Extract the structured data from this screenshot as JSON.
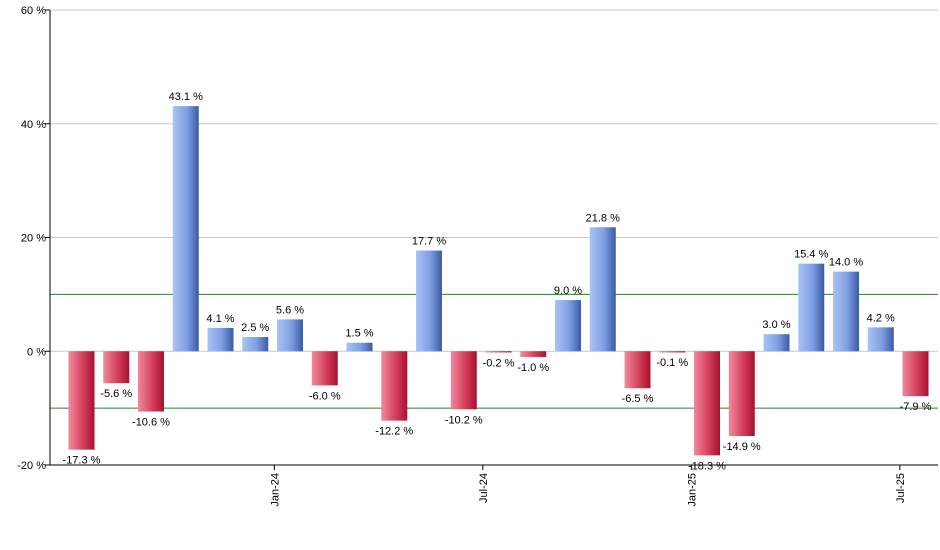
{
  "chart_data": {
    "type": "bar",
    "title": "",
    "xlabel": "",
    "ylabel": "",
    "ylim": [
      -20,
      60
    ],
    "y_ticks": [
      -20,
      0,
      20,
      40,
      60
    ],
    "y_tick_suffix": " %",
    "reference_lines": [
      10,
      -10
    ],
    "x_ticks": [
      {
        "label": "Jan-24",
        "index": 6
      },
      {
        "label": "Jul-24",
        "index": 12
      },
      {
        "label": "Jan-25",
        "index": 18
      },
      {
        "label": "Jul-25",
        "index": 24
      }
    ],
    "values": [
      -17.3,
      -5.6,
      -10.6,
      43.1,
      4.1,
      2.5,
      5.6,
      -6.0,
      1.5,
      -12.2,
      17.7,
      -10.2,
      -0.2,
      -1.0,
      9.0,
      21.8,
      -6.5,
      -0.1,
      -18.3,
      -14.9,
      3.0,
      15.4,
      14.0,
      4.2,
      -7.9
    ],
    "data_labels": [
      "-17.3 %",
      "-5.6 %",
      "-10.6 %",
      "43.1 %",
      "4.1 %",
      "2.5 %",
      "5.6 %",
      "-6.0 %",
      "1.5 %",
      "-12.2 %",
      "17.7 %",
      "-10.2 %",
      "-0.2 %",
      "-1.0 %",
      "9.0 %",
      "21.8 %",
      "-6.5 %",
      "-0.1 %",
      "-18.3 %",
      "-14.9 %",
      "3.0 %",
      "15.4 %",
      "14.0 %",
      "4.2 %",
      "-7.9 %"
    ],
    "colors": {
      "positive_light": "#a9c4f5",
      "positive_dark": "#3a5aa8",
      "negative_light": "#f08a9c",
      "negative_dark": "#a8102e",
      "grid": "#c8c8c8",
      "reference_line": "#2e7d2e",
      "axis": "#000000"
    }
  }
}
